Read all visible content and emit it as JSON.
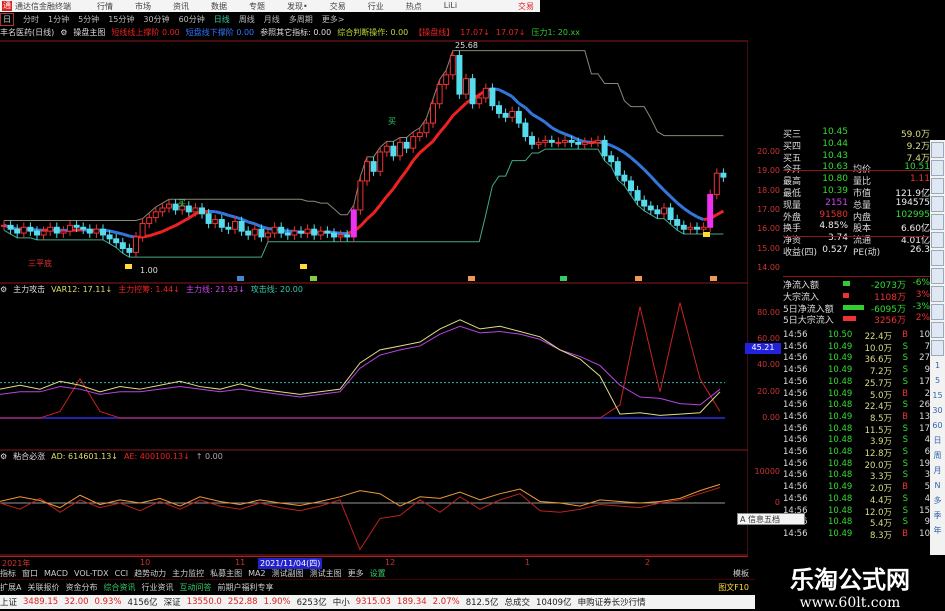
{
  "window": {
    "app_title": "通达信金融终端",
    "menu": [
      "行情",
      "市场",
      "资讯",
      "数据",
      "专题",
      "发现•",
      "交易",
      "行业",
      "热点",
      "LiLi"
    ],
    "trade_button": "交易"
  },
  "periods": {
    "first": "日",
    "items": [
      "分时",
      "1分钟",
      "5分钟",
      "15分钟",
      "30分钟",
      "60分钟",
      "日线",
      "周线",
      "月线",
      "多周期",
      "更多>"
    ],
    "selected": "日线"
  },
  "main_header": {
    "stock": "丰名医药(日线)",
    "indicator": "操盘主图",
    "items": [
      {
        "text": "短线线上撑阶 0.00",
        "color": "#e22"
      },
      {
        "text": "短盘线下撑阶 0.00",
        "color": "#37f"
      },
      {
        "text": "参照其它指标: 0.00",
        "color": "#ddd"
      },
      {
        "text": "综合判断操作: 0.00",
        "color": "#bd3"
      },
      {
        "text": "【操盘线】",
        "color": "#e22"
      },
      {
        "text": "17.07↓",
        "color": "#e22"
      },
      {
        "text": "17.07↓",
        "color": "#e22"
      },
      {
        "text": "压力1: 20.xx",
        "color": "#3c3"
      }
    ]
  },
  "main_chart": {
    "price_axis": [
      "20.00",
      "19.00",
      "18.00",
      "17.00",
      "16.00",
      "15.00",
      "14.00"
    ],
    "high_label": "25.68",
    "low_label": "1.00",
    "pattern_label": "三平底",
    "buy_label": "买",
    "closes": [
      16.2,
      16.0,
      15.8,
      16.1,
      15.9,
      15.7,
      15.9,
      16.1,
      15.8,
      15.9,
      16.2,
      16.1,
      16.0,
      15.8,
      16.0,
      15.7,
      15.5,
      15.3,
      15.0,
      14.8,
      15.6,
      16.3,
      16.6,
      16.9,
      17.1,
      17.3,
      17.0,
      17.2,
      16.9,
      17.1,
      16.8,
      16.3,
      16.5,
      16.1,
      16.0,
      16.4,
      15.9,
      15.7,
      16.0,
      15.6,
      15.8,
      16.1,
      15.8,
      15.7,
      15.9,
      15.8,
      16.0,
      15.7,
      15.9,
      15.8,
      15.6,
      15.7,
      15.6,
      17.0,
      18.5,
      19.5,
      19.0,
      20.0,
      20.3,
      19.8,
      20.5,
      20.2,
      20.8,
      21.0,
      21.5,
      22.5,
      23.5,
      24.0,
      25.0,
      23.0,
      23.8,
      22.5,
      22.8,
      23.3,
      22.4,
      22.0,
      21.8,
      22.1,
      21.5,
      20.8,
      20.4,
      20.5,
      20.6,
      20.5,
      20.5,
      20.6,
      20.5,
      20.4,
      20.5,
      20.5,
      20.6,
      19.8,
      19.5,
      18.8,
      18.5,
      18.0,
      17.5,
      17.2,
      17.0,
      16.8,
      17.1,
      16.5,
      16.2,
      16.0,
      16.1,
      16.0,
      16.1,
      17.8,
      18.9,
      18.7
    ],
    "colors": {
      "up": "#e33",
      "down": "#5de",
      "ma_up": "#e22",
      "ma_down": "#37d",
      "upper": "#887",
      "lower": "#4a8"
    }
  },
  "ind1": {
    "name": "主力攻击",
    "items": [
      {
        "text": "VAR12: 17.11↓",
        "color": "#dd6"
      },
      {
        "text": "主力控筹: 1.44↓",
        "color": "#e22"
      },
      {
        "text": "主力线: 21.93↓",
        "color": "#c4e"
      },
      {
        "text": "攻击线: 20.00",
        "color": "#3ca"
      }
    ],
    "axis": [
      "80.00",
      "60.00",
      "40.00",
      "20.00",
      "0.00"
    ],
    "cursor_value": "45.21",
    "ref_level": 27,
    "yellow": [
      22,
      25,
      22,
      28,
      25,
      20,
      24,
      22,
      25,
      28,
      24,
      22,
      26,
      22,
      20,
      18,
      20,
      22,
      42,
      52,
      55,
      58,
      68,
      75,
      68,
      70,
      66,
      62,
      52,
      45,
      32,
      3,
      4,
      2,
      3,
      4,
      20
    ],
    "magenta": [
      18,
      20,
      20,
      24,
      22,
      18,
      20,
      20,
      22,
      24,
      22,
      20,
      22,
      20,
      18,
      16,
      18,
      20,
      38,
      48,
      52,
      55,
      64,
      70,
      65,
      66,
      64,
      60,
      52,
      47,
      40,
      25,
      16,
      15,
      11,
      10,
      22
    ],
    "red": [
      0,
      0,
      0,
      5,
      30,
      5,
      0,
      0,
      0,
      0,
      0,
      0,
      0,
      0,
      0,
      0,
      0,
      0,
      0,
      0,
      0,
      0,
      0,
      0,
      0,
      0,
      0,
      0,
      0,
      0,
      0,
      10,
      85,
      20,
      88,
      30,
      5
    ]
  },
  "ind2": {
    "name": "粘合必涨",
    "items": [
      {
        "text": "AD: 614601.13↓",
        "color": "#dd6"
      },
      {
        "text": "AE: 400100.13↓",
        "color": "#e22"
      },
      {
        "text": "↑ 0.00",
        "color": "#aaa"
      }
    ],
    "axis": [
      "10000",
      "0"
    ],
    "orange": [
      500,
      2000,
      800,
      -1500,
      2500,
      -500,
      1000,
      0,
      1500,
      -1000,
      2000,
      500,
      -500,
      1000,
      0,
      -800,
      500,
      2000,
      4000,
      3000,
      -1000,
      2000,
      1500,
      3500,
      1000,
      3000,
      4500,
      500,
      0,
      -1000,
      1000,
      500,
      0,
      500,
      1500,
      4000,
      6000
    ],
    "red": [
      0,
      -2000,
      1500,
      -3000,
      1000,
      -1500,
      0,
      -2500,
      500,
      -2000,
      1000,
      -1000,
      -2000,
      0,
      -1500,
      -2500,
      -1000,
      1000,
      -15000,
      -5000,
      -4000,
      1000,
      -3000,
      2000,
      -2000,
      1000,
      3000,
      -2500,
      -3000,
      -2000,
      -500,
      -1000,
      -1500,
      0,
      1000,
      3000,
      5000
    ]
  },
  "order_book": [
    {
      "l1": "买三",
      "v1": "10.45",
      "l2": "",
      "v2": "59.0万"
    },
    {
      "l1": "买四",
      "v1": "10.44",
      "l2": "",
      "v2": "9.2万"
    },
    {
      "l1": "买五",
      "v1": "10.43",
      "l2": "",
      "v2": "7.4万"
    },
    {
      "l1": "今开",
      "v1": "10.63",
      "l2": "均价",
      "v2": "10.51"
    },
    {
      "l1": "最高",
      "v1": "10.80",
      "l2": "量比",
      "v2": "1.11"
    },
    {
      "l1": "最低",
      "v1": "10.39",
      "l2": "市值",
      "v2": "121.9亿"
    },
    {
      "l1": "现量",
      "v1": "2151",
      "l2": "总量",
      "v2": "194575"
    },
    {
      "l1": "外盘",
      "v1": "91580",
      "l2": "内盘",
      "v2": "102995"
    },
    {
      "l1": "换手",
      "v1": "4.85%",
      "l2": "股本",
      "v2": "6.60亿"
    },
    {
      "l1": "净资",
      "v1": "3.74",
      "l2": "流通",
      "v2": "4.01亿"
    },
    {
      "l1": "收益(四)",
      "v1": "0.527",
      "l2": "PE(动)",
      "v2": "26.3"
    }
  ],
  "fund_flow": [
    {
      "label": "净流入额",
      "value": "-2073万",
      "pct": "-6%",
      "bar": 0.15
    },
    {
      "label": "大宗流入",
      "value": "1108万",
      "pct": "3%",
      "bar": 0.1
    },
    {
      "label": "5日净流入额",
      "value": "-6095万",
      "pct": "-3%",
      "bar": 0.75
    },
    {
      "label": "5日大宗流入",
      "value": "3256万",
      "pct": "2%",
      "bar": 0.4
    }
  ],
  "ticks": [
    [
      "14:56",
      "10.50",
      "22.4万",
      "B",
      "10"
    ],
    [
      "14:56",
      "10.49",
      "10.0万",
      "S",
      "7"
    ],
    [
      "14:56",
      "10.49",
      "36.6万",
      "S",
      "27"
    ],
    [
      "14:56",
      "10.49",
      "7.2万",
      "S",
      "9"
    ],
    [
      "14:56",
      "10.48",
      "25.7万",
      "S",
      "17"
    ],
    [
      "14:56",
      "10.49",
      "5.0万",
      "B",
      "2"
    ],
    [
      "14:56",
      "10.48",
      "22.4万",
      "S",
      "26"
    ],
    [
      "14:56",
      "10.49",
      "8.5万",
      "B",
      "13"
    ],
    [
      "14:56",
      "10.48",
      "11.5万",
      "S",
      "17"
    ],
    [
      "14:56",
      "10.48",
      "3.9万",
      "S",
      "4"
    ],
    [
      "14:56",
      "10.48",
      "12.8万",
      "S",
      "6"
    ],
    [
      "14:56",
      "10.48",
      "20.0万",
      "S",
      "19"
    ],
    [
      "14:56",
      "10.48",
      "3.3万",
      "S",
      "3"
    ],
    [
      "14:56",
      "10.49",
      "2.0万",
      "B",
      "5"
    ],
    [
      "14:56",
      "10.48",
      "4.4万",
      "S",
      "4"
    ],
    [
      "14:56",
      "10.48",
      "12.0万",
      "S",
      "15"
    ],
    [
      "14:56",
      "10.48",
      "5.4万",
      "S",
      "9"
    ],
    [
      "14:56",
      "10.49",
      "8.3万",
      "B",
      "10"
    ]
  ],
  "toolbar_periods": [
    "1",
    "5",
    "15",
    "30",
    "60",
    "日",
    "周",
    "月",
    "N",
    "多",
    "季",
    "年"
  ],
  "float_widget": "A 信息五档",
  "date_axis": [
    {
      "t": "2021年"
    },
    {
      "t": "10"
    },
    {
      "t": "11"
    },
    {
      "t": "2021/11/04(四)",
      "sel": true
    },
    {
      "t": "12"
    },
    {
      "t": "1"
    },
    {
      "t": "2"
    }
  ],
  "tabs1": [
    "指标",
    "窗口",
    "MACD",
    "VOL-TDX",
    "CCI",
    "趋势动力",
    "主力监控",
    "私募主图",
    "MA2",
    "测试副图",
    "测试主图",
    "更多",
    "设置"
  ],
  "tabs1_right": "模板",
  "tabs2": [
    "扩展A",
    "关联报价",
    "资金分布",
    "综合资讯",
    "行业资讯",
    "互动问答",
    "前期户福利专享"
  ],
  "tabs2_right": "图文F10",
  "status": [
    {
      "t": "上证",
      "c": "#222"
    },
    {
      "t": "3489.15",
      "c": "#d22"
    },
    {
      "t": "32.00",
      "c": "#d22"
    },
    {
      "t": "0.93%",
      "c": "#d22"
    },
    {
      "t": "4156亿",
      "c": "#222"
    },
    {
      "t": "深证",
      "c": "#222"
    },
    {
      "t": "13550.0",
      "c": "#d22"
    },
    {
      "t": "252.88",
      "c": "#d22"
    },
    {
      "t": "1.90%",
      "c": "#d22"
    },
    {
      "t": "6253亿",
      "c": "#222"
    },
    {
      "t": "中小",
      "c": "#222"
    },
    {
      "t": "9315.03",
      "c": "#d22"
    },
    {
      "t": "189.34",
      "c": "#d22"
    },
    {
      "t": "2.07%",
      "c": "#d22"
    },
    {
      "t": "812.5亿",
      "c": "#222"
    },
    {
      "t": "总成交",
      "c": "#222"
    },
    {
      "t": "10409亿",
      "c": "#222"
    },
    {
      "t": "申购证券长沙行情",
      "c": "#222"
    }
  ],
  "watermark": {
    "title": "乐淘公式网",
    "url": "www.60lt.com"
  }
}
